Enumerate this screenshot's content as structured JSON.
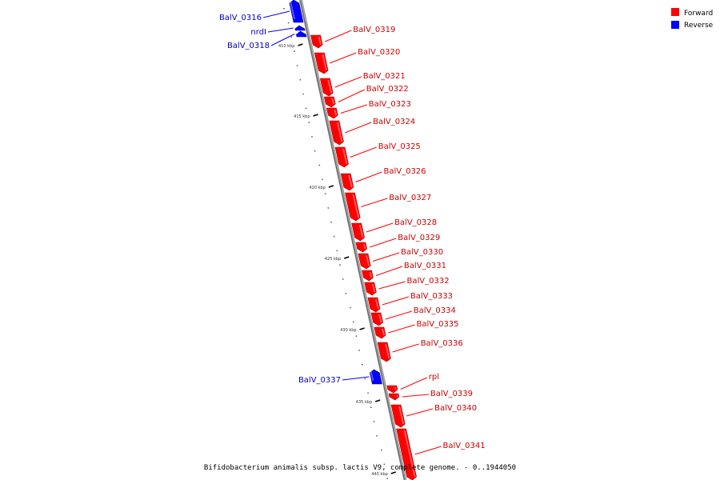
{
  "legend": {
    "forward": {
      "label": "Forward",
      "color": "#ff0000"
    },
    "reverse": {
      "label": "Reverse",
      "color": "#0000ff"
    }
  },
  "caption": "Bifidobacterium animalis subsp. lactis V9, complete genome. - 0..1944050",
  "tick_labels": [
    "410 kbp",
    "415 kbp",
    "420 kbp",
    "425 kbp",
    "430 kbp",
    "435 kbp",
    "440 kbp"
  ],
  "genes": [
    {
      "name": "BalV_0316",
      "strand": "reverse"
    },
    {
      "name": "nrdI",
      "strand": "reverse"
    },
    {
      "name": "BalV_0318",
      "strand": "reverse"
    },
    {
      "name": "BalV_0319",
      "strand": "forward"
    },
    {
      "name": "BalV_0320",
      "strand": "forward"
    },
    {
      "name": "BalV_0321",
      "strand": "forward"
    },
    {
      "name": "BalV_0322",
      "strand": "forward"
    },
    {
      "name": "BalV_0323",
      "strand": "forward"
    },
    {
      "name": "BalV_0324",
      "strand": "forward"
    },
    {
      "name": "BalV_0325",
      "strand": "forward"
    },
    {
      "name": "BalV_0326",
      "strand": "forward"
    },
    {
      "name": "BalV_0327",
      "strand": "forward"
    },
    {
      "name": "BalV_0328",
      "strand": "forward"
    },
    {
      "name": "BalV_0329",
      "strand": "forward"
    },
    {
      "name": "BalV_0330",
      "strand": "forward"
    },
    {
      "name": "BalV_0331",
      "strand": "forward"
    },
    {
      "name": "BalV_0332",
      "strand": "forward"
    },
    {
      "name": "BalV_0333",
      "strand": "forward"
    },
    {
      "name": "BalV_0334",
      "strand": "forward"
    },
    {
      "name": "BalV_0335",
      "strand": "forward"
    },
    {
      "name": "BalV_0336",
      "strand": "forward"
    },
    {
      "name": "BalV_0337",
      "strand": "reverse"
    },
    {
      "name": "rpl",
      "strand": "forward"
    },
    {
      "name": "BalV_0339",
      "strand": "forward"
    },
    {
      "name": "BalV_0340",
      "strand": "forward"
    },
    {
      "name": "BalV_0341",
      "strand": "forward"
    }
  ]
}
